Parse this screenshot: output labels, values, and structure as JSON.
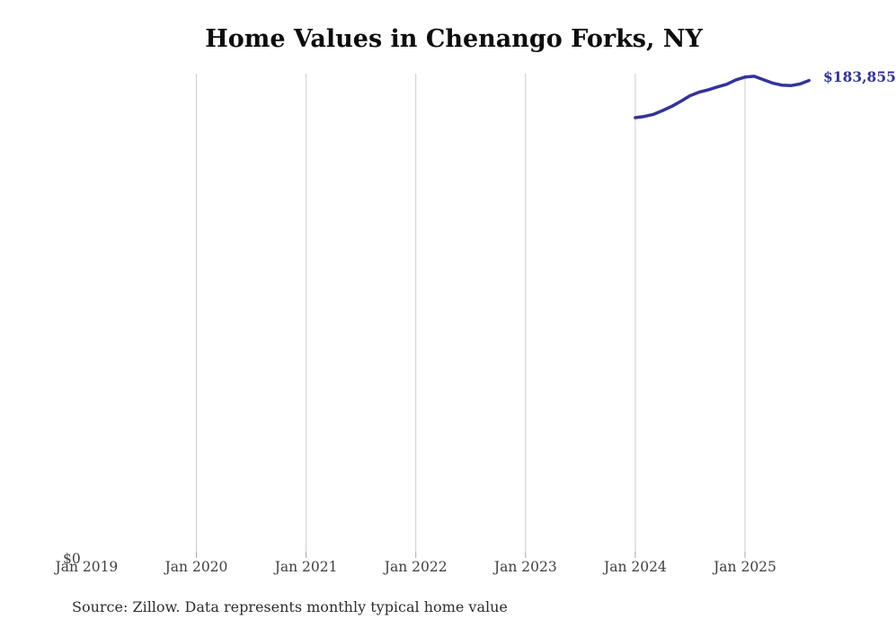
{
  "title": {
    "text": "Home Values in Chenango Forks, NY"
  },
  "source": {
    "text": "Source: Zillow. Data represents monthly typical home value"
  },
  "chart": {
    "y_zero_label": "$0",
    "end_label": "$183,855",
    "line_color": "#33339b",
    "gridline_color": "#cccccc"
  },
  "chart_data": {
    "type": "line",
    "title": "Home Values in Chenango Forks, NY",
    "xlabel": "",
    "ylabel": "",
    "x_tick_labels": [
      "Jan 2019",
      "Jan 2020",
      "Jan 2021",
      "Jan 2022",
      "Jan 2023",
      "Jan 2024",
      "Jan 2025"
    ],
    "ylim": [
      0,
      186500
    ],
    "grid": "vertical-yearly",
    "legend": "none",
    "series": [
      {
        "name": "Monthly typical home value",
        "x": [
          "Jan 2024",
          "Feb 2024",
          "Mar 2024",
          "Apr 2024",
          "May 2024",
          "Jun 2024",
          "Jul 2024",
          "Aug 2024",
          "Sep 2024",
          "Oct 2024",
          "Nov 2024",
          "Dec 2024",
          "Jan 2025",
          "Feb 2025",
          "Mar 2025",
          "Apr 2025",
          "May 2025",
          "Jun 2025",
          "Jul 2025",
          "Aug 2025"
        ],
        "values": [
          169500,
          170000,
          170800,
          172300,
          173900,
          175900,
          178000,
          179400,
          180300,
          181400,
          182400,
          184100,
          185200,
          185500,
          184200,
          182900,
          182100,
          181900,
          182500,
          183855
        ]
      }
    ],
    "annotations": [
      {
        "text": "$183,855",
        "position": "line-end"
      }
    ]
  }
}
